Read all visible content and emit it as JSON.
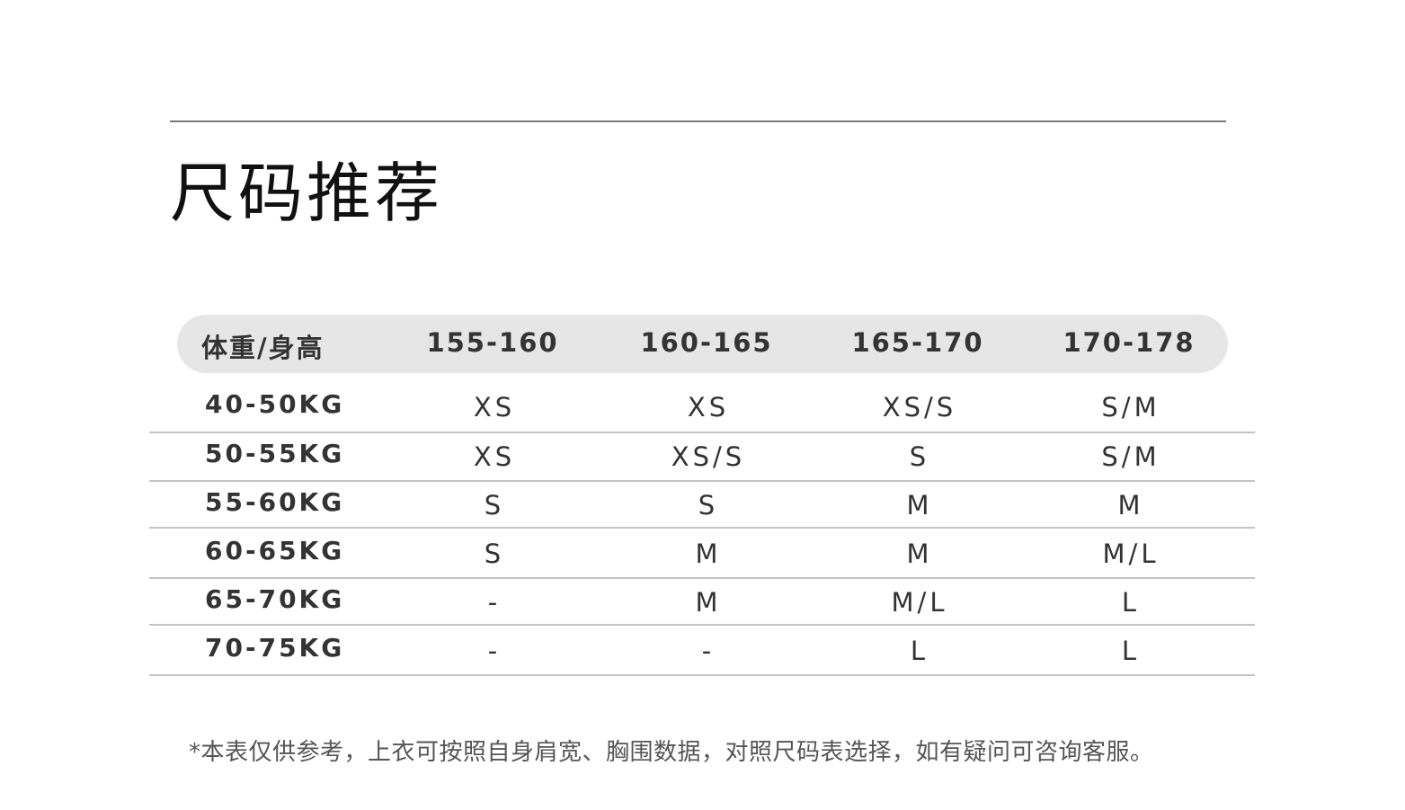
{
  "title": "尺码推荐",
  "table": {
    "corner_header": "体重/身高",
    "columns": [
      "155-160",
      "160-165",
      "165-170",
      "170-178"
    ],
    "rows": [
      {
        "label": "40-50KG",
        "values": [
          "XS",
          "XS",
          "XS/S",
          "S/M"
        ]
      },
      {
        "label": "50-55KG",
        "values": [
          "XS",
          "XS/S",
          "S",
          "S/M"
        ]
      },
      {
        "label": "55-60KG",
        "values": [
          "S",
          "S",
          "M",
          "M"
        ]
      },
      {
        "label": "60-65KG",
        "values": [
          "S",
          "M",
          "M",
          "M/L"
        ]
      },
      {
        "label": "65-70KG",
        "values": [
          "-",
          "M",
          "M/L",
          "L"
        ]
      },
      {
        "label": "70-75KG",
        "values": [
          "-",
          "-",
          "L",
          "L"
        ]
      }
    ]
  },
  "note": "*本表仅供参考，上衣可按照自身肩宽、胸围数据，对照尺码表选择，如有疑问可咨询客服。"
}
